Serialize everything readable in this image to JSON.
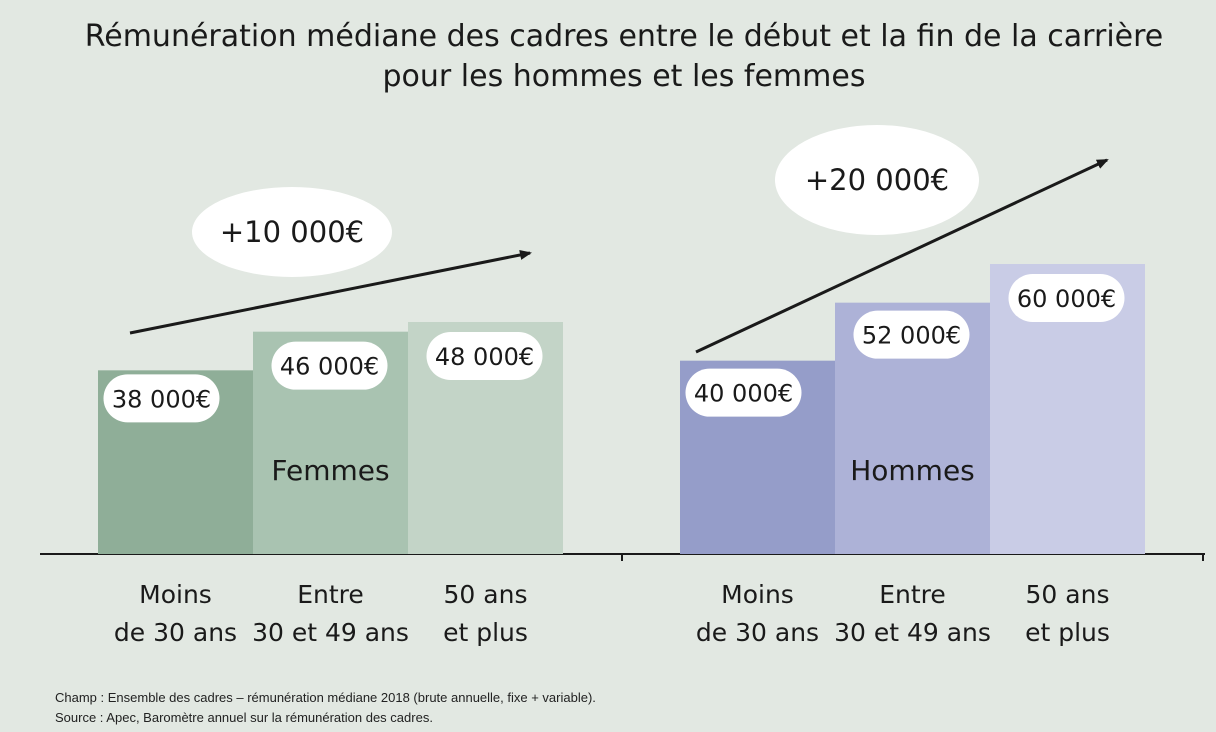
{
  "chart_data": {
    "type": "bar",
    "title_lines": [
      "Rémunération médiane des cadres entre le début et la fin de la carrière",
      "pour les hommes et les femmes"
    ],
    "categories": [
      [
        "Moins",
        "de 30 ans"
      ],
      [
        "Entre",
        "30 et 49 ans"
      ],
      [
        "50 ans",
        "et plus"
      ]
    ],
    "groups": [
      {
        "name": "Femmes",
        "values": [
          38000,
          46000,
          48000
        ],
        "value_labels": [
          "38 000€",
          "46 000€",
          "48 000€"
        ],
        "delta_label": "+10 000€",
        "colors": [
          "#8fae98",
          "#a9c3b1",
          "#c3d4c7"
        ]
      },
      {
        "name": "Hommes",
        "values": [
          40000,
          52000,
          60000
        ],
        "value_labels": [
          "40 000€",
          "52 000€",
          "60 000€"
        ],
        "delta_label": "+20 000€",
        "colors": [
          "#959dc9",
          "#adb2d7",
          "#c9cce6"
        ]
      }
    ],
    "ylim": [
      0,
      60000
    ],
    "grid": false
  },
  "notes": {
    "champ": "Champ : Ensemble des cadres – rémunération médiane 2018 (brute annuelle, fixe + variable).",
    "source": "Source : Apec, Baromètre annuel sur la rémunération des cadres."
  }
}
